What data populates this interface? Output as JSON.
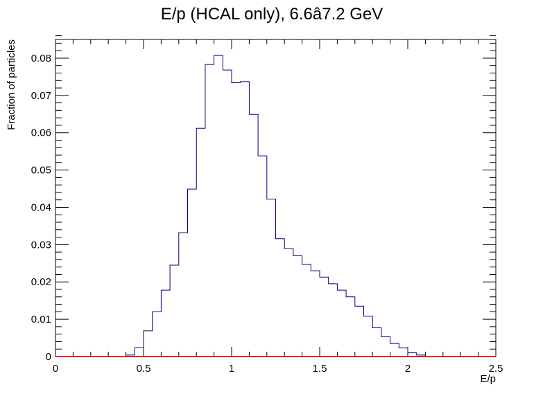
{
  "chart_data": {
    "type": "bar",
    "title": "E/p (HCAL only), 6.6â7.2 GeV",
    "xlabel": "E/p",
    "ylabel": "Fraction of particles",
    "xlim": [
      0,
      2.5
    ],
    "ylim": [
      0,
      0.085
    ],
    "x_ticks": [
      0,
      0.5,
      1,
      1.5,
      2,
      2.5
    ],
    "x_tick_labels": [
      "0",
      "0.5",
      "1",
      "1.5",
      "2",
      "2.5"
    ],
    "y_ticks": [
      0,
      0.01,
      0.02,
      0.03,
      0.04,
      0.05,
      0.06,
      0.07,
      0.08
    ],
    "y_tick_labels": [
      "0",
      "0.01",
      "0.02",
      "0.03",
      "0.04",
      "0.05",
      "0.06",
      "0.07",
      "0.08"
    ],
    "grid": false,
    "bin_width": 0.05,
    "series": [
      {
        "color": "#000080",
        "bin_low_edges": [
          0.4,
          0.45,
          0.5,
          0.55,
          0.6,
          0.65,
          0.7,
          0.75,
          0.8,
          0.85,
          0.9,
          0.95,
          1.0,
          1.05,
          1.1,
          1.15,
          1.2,
          1.25,
          1.3,
          1.35,
          1.4,
          1.45,
          1.5,
          1.55,
          1.6,
          1.65,
          1.7,
          1.75,
          1.8,
          1.85,
          1.9,
          1.95,
          2.0,
          2.05
        ],
        "values": [
          0.0004,
          0.0024,
          0.0069,
          0.012,
          0.0178,
          0.0245,
          0.0332,
          0.0449,
          0.0612,
          0.0783,
          0.0807,
          0.0768,
          0.0734,
          0.0737,
          0.0649,
          0.0538,
          0.0422,
          0.0316,
          0.0289,
          0.027,
          0.0247,
          0.023,
          0.0213,
          0.0195,
          0.0178,
          0.016,
          0.0135,
          0.0108,
          0.0077,
          0.0053,
          0.0035,
          0.0023,
          0.001,
          0.0004
        ]
      },
      {
        "color": "#ff0000",
        "x": [
          0,
          2.5
        ],
        "values": [
          0,
          0
        ]
      }
    ]
  }
}
